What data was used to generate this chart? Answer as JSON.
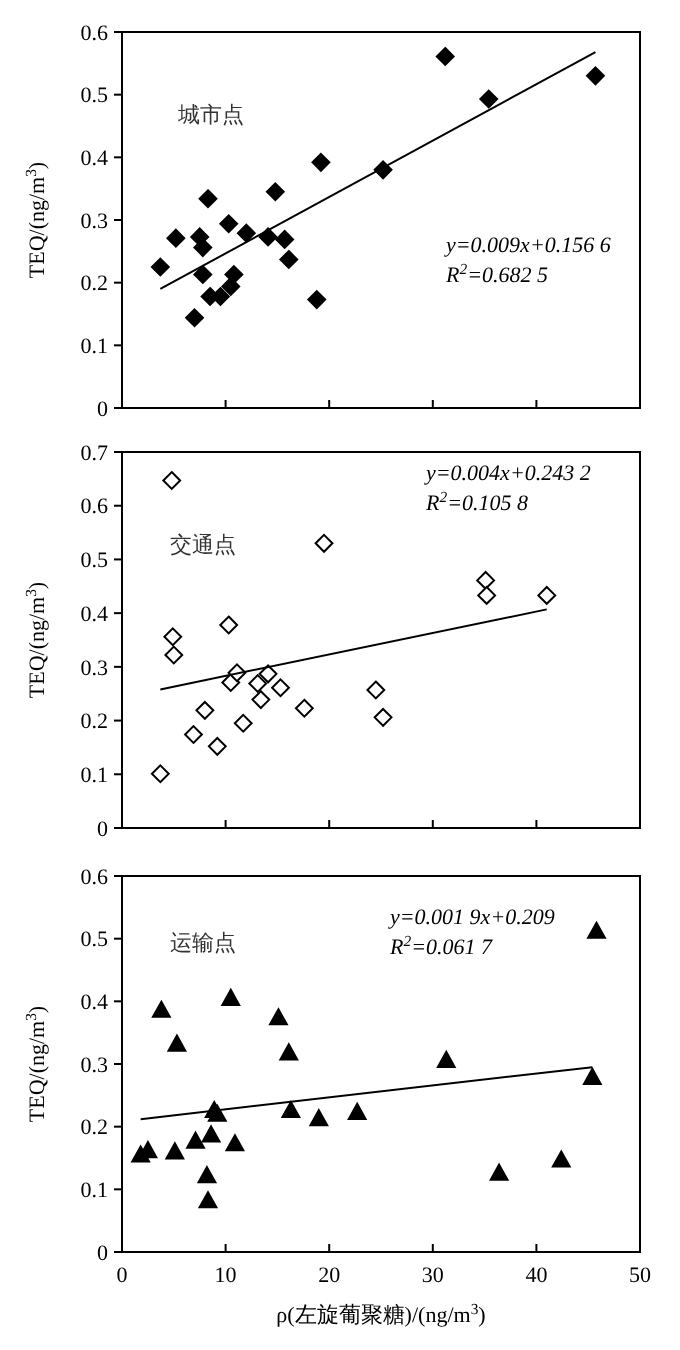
{
  "chart_data": [
    {
      "type": "scatter",
      "ylabel": "TEQ/(ng/m$^{3}$)",
      "xlim": [
        0,
        50
      ],
      "xticks": [
        0,
        10,
        20,
        30,
        40,
        50
      ],
      "ylim": [
        0,
        0.6
      ],
      "yticks": [
        0,
        0.1,
        0.2,
        0.3,
        0.4,
        0.5,
        0.6
      ],
      "tick_labels": "y",
      "grid": false,
      "annotations": [
        "城市点",
        "y=0.009x+0.156 6",
        "R$^{2}$=0.682 5"
      ],
      "series": [
        {
          "color": "#000000",
          "marker": "diamond",
          "x": [
            3.7,
            5.2,
            7.0,
            7.5,
            7.8,
            7.8,
            8.3,
            8.5,
            9.5,
            10.3,
            10.5,
            10.8,
            12.0,
            14.1,
            14.8,
            15.7,
            16.1,
            18.8,
            19.2,
            25.2,
            31.2,
            35.4,
            45.7
          ],
          "values": [
            0.225,
            0.271,
            0.144,
            0.273,
            0.256,
            0.213,
            0.334,
            0.178,
            0.178,
            0.294,
            0.194,
            0.213,
            0.279,
            0.273,
            0.345,
            0.269,
            0.237,
            0.173,
            0.392,
            0.38,
            0.561,
            0.493,
            0.53
          ]
        },
        {
          "type": "line",
          "color": "#000000",
          "marker": "none",
          "x": [
            3.7,
            45.7
          ],
          "values": [
            0.19,
            0.568
          ]
        }
      ]
    },
    {
      "type": "scatter",
      "ylabel": "TEQ/(ng/m$^{3}$)",
      "xlim": [
        0,
        50
      ],
      "xticks": [
        0,
        10,
        20,
        30,
        40,
        50
      ],
      "ylim": [
        0,
        0.7
      ],
      "yticks": [
        0,
        0.1,
        0.2,
        0.3,
        0.4,
        0.5,
        0.6,
        0.7
      ],
      "tick_labels": "y",
      "grid": false,
      "annotations": [
        "交通点",
        "y=0.004x+0.243 2",
        "R$^{2}$=0.105 8"
      ],
      "series": [
        {
          "color": "#ffffff",
          "marker": "diamond",
          "x": [
            3.7,
            4.8,
            4.9,
            5.0,
            6.9,
            8.0,
            9.2,
            10.3,
            10.5,
            11.1,
            11.7,
            13.1,
            13.4,
            14.1,
            15.3,
            17.6,
            19.5,
            24.5,
            25.2,
            35.1,
            35.2,
            41.0
          ],
          "values": [
            0.101,
            0.647,
            0.356,
            0.322,
            0.174,
            0.219,
            0.152,
            0.378,
            0.271,
            0.289,
            0.195,
            0.269,
            0.239,
            0.287,
            0.261,
            0.223,
            0.53,
            0.257,
            0.206,
            0.461,
            0.433,
            0.433
          ]
        },
        {
          "type": "line",
          "color": "#000000",
          "marker": "none",
          "x": [
            3.7,
            41.0
          ],
          "values": [
            0.258,
            0.407
          ]
        }
      ]
    },
    {
      "type": "scatter",
      "ylabel": "TEQ/(ng/m$^{3}$)",
      "xlabel": "ρ(左旋葡聚糖)/(ng/m$^{3}$)",
      "xlim": [
        0,
        50
      ],
      "xticks": [
        0,
        10,
        20,
        30,
        40,
        50
      ],
      "ylim": [
        0,
        0.6
      ],
      "yticks": [
        0,
        0.1,
        0.2,
        0.3,
        0.4,
        0.5,
        0.6
      ],
      "grid": false,
      "annotations": [
        "运输点",
        "y=0.001 9x+0.209",
        "R$^{2}$=0.061 7"
      ],
      "series": [
        {
          "color": "#000000",
          "marker": "triangle",
          "x": [
            1.8,
            2.5,
            3.8,
            5.3,
            5.1,
            7.1,
            8.2,
            8.3,
            8.6,
            8.9,
            9.2,
            10.5,
            10.9,
            15.1,
            16.1,
            16.3,
            19.0,
            22.7,
            31.3,
            36.4,
            42.4,
            45.4,
            45.8
          ],
          "values": [
            0.155,
            0.162,
            0.386,
            0.332,
            0.16,
            0.177,
            0.122,
            0.082,
            0.187,
            0.226,
            0.22,
            0.405,
            0.173,
            0.374,
            0.318,
            0.226,
            0.213,
            0.223,
            0.306,
            0.126,
            0.147,
            0.279,
            0.512
          ]
        },
        {
          "type": "line",
          "color": "#000000",
          "marker": "none",
          "x": [
            1.8,
            45.4
          ],
          "values": [
            0.212,
            0.295
          ]
        }
      ]
    }
  ]
}
